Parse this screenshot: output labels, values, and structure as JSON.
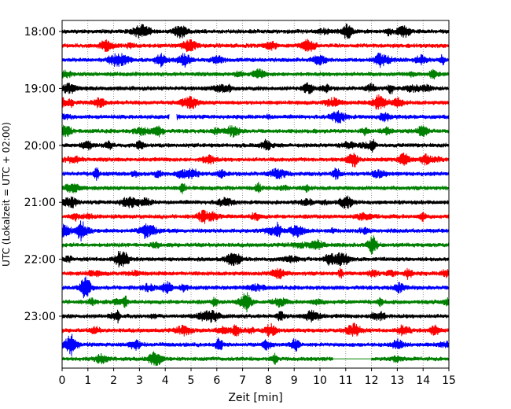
{
  "chart_data": {
    "type": "line",
    "title": "",
    "xlabel": "Zeit  [min]",
    "ylabel": "UTC (Lokalzeit = UTC + 02:00)",
    "xlim": [
      0,
      15
    ],
    "x_ticks": [
      0,
      1,
      2,
      3,
      4,
      5,
      6,
      7,
      8,
      9,
      10,
      11,
      12,
      13,
      14,
      15
    ],
    "x_tick_labels": [
      "0",
      "1",
      "2",
      "3",
      "4",
      "5",
      "6",
      "7",
      "8",
      "9",
      "10",
      "11",
      "12",
      "13",
      "14",
      "15"
    ],
    "y_tick_labels": [
      "18:00",
      "19:00",
      "20:00",
      "21:00",
      "22:00",
      "23:00"
    ],
    "y_tick_hours": [
      18,
      19,
      20,
      21,
      22,
      23
    ],
    "grid": "vertical-dotted",
    "legend": "none",
    "trace_interval_min": 15,
    "trace_colors": [
      "#000000",
      "#ff0000",
      "#0000ff",
      "#008000"
    ],
    "traces": [
      {
        "start": "18:00",
        "color": "#000000"
      },
      {
        "start": "18:15",
        "color": "#ff0000"
      },
      {
        "start": "18:30",
        "color": "#0000ff"
      },
      {
        "start": "18:45",
        "color": "#008000"
      },
      {
        "start": "19:00",
        "color": "#000000"
      },
      {
        "start": "19:15",
        "color": "#ff0000"
      },
      {
        "start": "19:30",
        "color": "#0000ff"
      },
      {
        "start": "19:45",
        "color": "#008000"
      },
      {
        "start": "20:00",
        "color": "#000000"
      },
      {
        "start": "20:15",
        "color": "#ff0000"
      },
      {
        "start": "20:30",
        "color": "#0000ff"
      },
      {
        "start": "20:45",
        "color": "#008000"
      },
      {
        "start": "21:00",
        "color": "#000000"
      },
      {
        "start": "21:15",
        "color": "#ff0000"
      },
      {
        "start": "21:30",
        "color": "#0000ff"
      },
      {
        "start": "21:45",
        "color": "#008000"
      },
      {
        "start": "22:00",
        "color": "#000000"
      },
      {
        "start": "22:15",
        "color": "#ff0000"
      },
      {
        "start": "22:30",
        "color": "#0000ff"
      },
      {
        "start": "22:45",
        "color": "#008000"
      },
      {
        "start": "23:00",
        "color": "#000000"
      },
      {
        "start": "23:15",
        "color": "#ff0000"
      },
      {
        "start": "23:30",
        "color": "#0000ff"
      },
      {
        "start": "23:45",
        "color": "#008000"
      }
    ]
  }
}
